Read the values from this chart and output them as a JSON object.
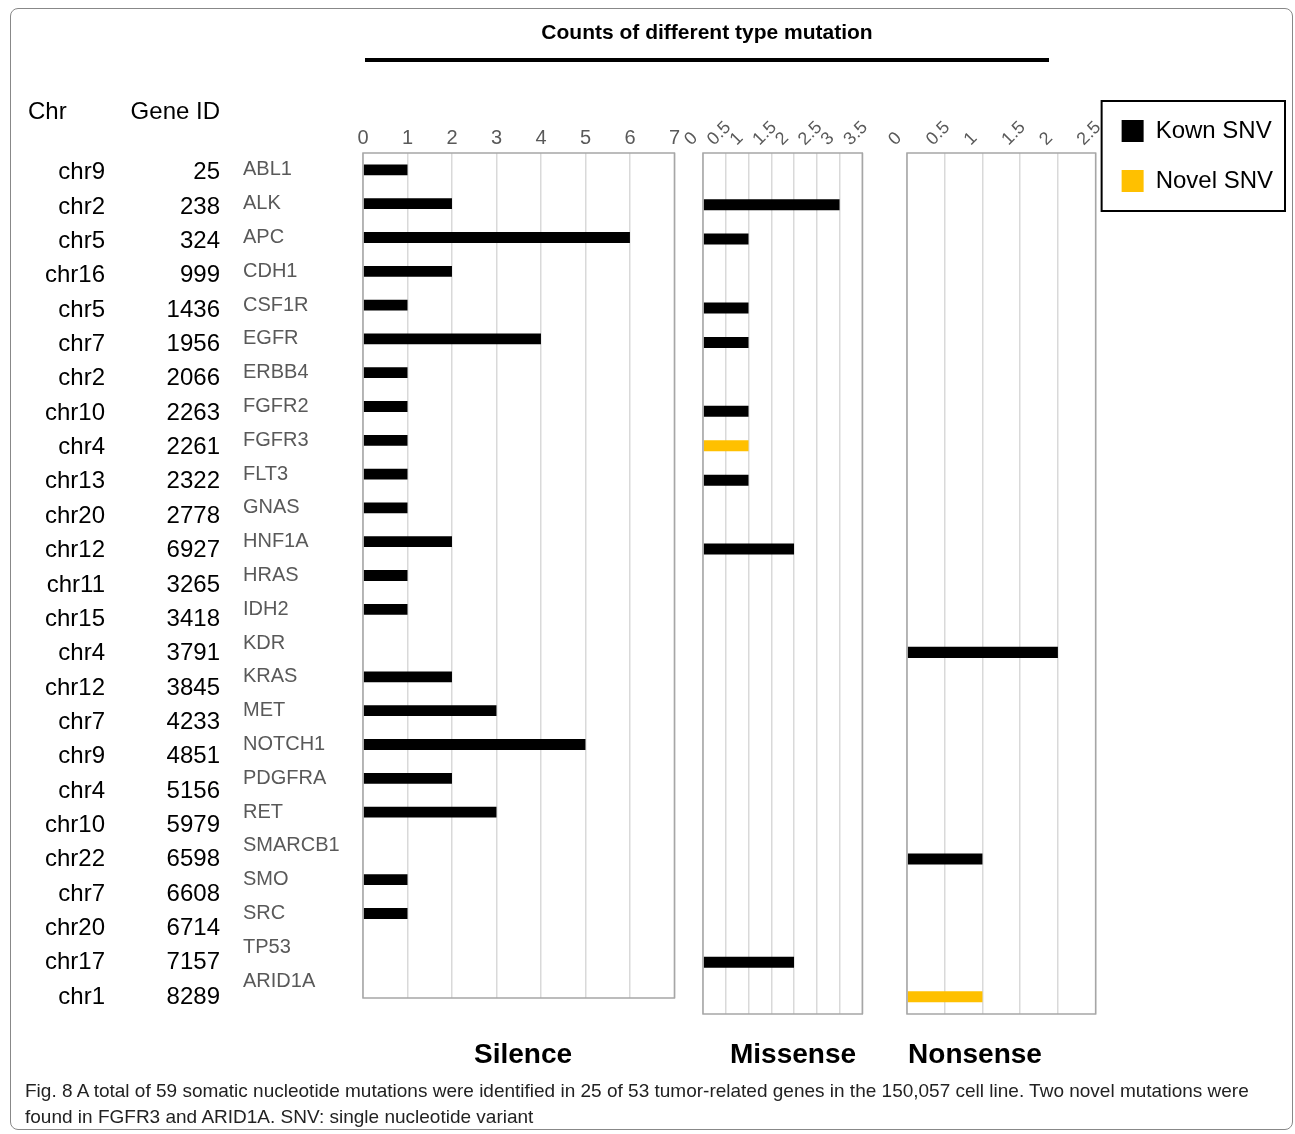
{
  "chart_data": [
    {
      "type": "other",
      "title": "Counts of different type mutation",
      "annotations": [
        "Chr",
        "Gene ID",
        "chr9",
        "25",
        "chr2",
        "238",
        "chr5",
        "324",
        "chr16",
        "999",
        "chr5",
        "1436",
        "chr7",
        "1956",
        "chr2",
        "2066",
        "chr10",
        "2263",
        "chr4",
        "2261",
        "chr13",
        "2322",
        "chr20",
        "2778",
        "chr12",
        "6927",
        "chr11",
        "3265",
        "chr15",
        "3418",
        "chr4",
        "3791",
        "chr12",
        "3845",
        "chr7",
        "4233",
        "chr9",
        "4851",
        "chr4",
        "5156",
        "chr10",
        "5979",
        "chr22",
        "6598",
        "chr7",
        "6608",
        "chr20",
        "6714",
        "chr17",
        "7157",
        "chr1",
        "8289",
        "Fig. 8 A total of 59 somatic nucleotide mutations were identified in 25 of 53 tumor-related genes in the 150,057 cell line. Two novel mutations were found in FGFR3 and ARID1A. SNV: single nucleotide variant"
      ]
    },
    {
      "type": "bar",
      "orientation": "horizontal",
      "stacked": true,
      "xlabel": "Silence",
      "grid": "x",
      "categories": [
        "ABL1",
        "ALK",
        "APC",
        "CDH1",
        "CSF1R",
        "EGFR",
        "ERBB4",
        "FGFR2",
        "FGFR3",
        "FLT3",
        "GNAS",
        "HNF1A",
        "HRAS",
        "IDH2",
        "KDR",
        "KRAS",
        "MET",
        "NOTCH1",
        "PDGFRA",
        "RET",
        "SMARCB1",
        "SMO",
        "SRC",
        "TP53",
        "ARID1A"
      ],
      "xlim": [
        0,
        7
      ],
      "xticks": [
        0,
        1,
        2,
        3,
        4,
        5,
        6,
        7
      ],
      "series": [
        {
          "color": "#000000",
          "values": [
            1,
            2,
            6,
            2,
            1,
            4,
            1,
            1,
            1,
            1,
            1,
            2,
            1,
            1,
            null,
            2,
            3,
            5,
            2,
            3,
            null,
            1,
            1,
            null,
            null
          ]
        }
      ]
    },
    {
      "type": "bar",
      "orientation": "horizontal",
      "stacked": true,
      "xlabel": "Missense",
      "grid": "x",
      "tick_labels": "x",
      "xlim": [
        0,
        3.5
      ],
      "xticks": [
        0,
        0.5,
        1,
        1.5,
        2,
        2.5,
        3,
        3.5
      ],
      "series": [
        {
          "color": "#000000",
          "values": [
            null,
            3,
            1,
            null,
            1,
            1,
            null,
            1,
            null,
            1,
            null,
            2,
            null,
            null,
            null,
            null,
            null,
            null,
            null,
            null,
            null,
            null,
            null,
            2,
            null
          ]
        },
        {
          "color": "#ffc000",
          "values": [
            null,
            null,
            null,
            null,
            null,
            null,
            null,
            null,
            1,
            null,
            null,
            null,
            null,
            null,
            null,
            null,
            null,
            null,
            null,
            null,
            null,
            null,
            null,
            null,
            null
          ]
        }
      ]
    },
    {
      "type": "bar",
      "orientation": "horizontal",
      "stacked": true,
      "xlabel": "Nonsense",
      "grid": "x",
      "tick_labels": "x",
      "legend": "right",
      "xlim": [
        0,
        2.5
      ],
      "xticks": [
        0,
        0.5,
        1,
        1.5,
        2,
        2.5
      ],
      "series": [
        {
          "name": "Kown SNV",
          "color": "#000000",
          "values": [
            null,
            null,
            null,
            null,
            null,
            null,
            null,
            null,
            null,
            null,
            null,
            null,
            null,
            null,
            2,
            null,
            null,
            null,
            null,
            null,
            1,
            null,
            null,
            null,
            null
          ]
        },
        {
          "name": "Novel SNV",
          "color": "#ffc000",
          "values": [
            null,
            null,
            null,
            null,
            null,
            null,
            null,
            null,
            null,
            null,
            null,
            null,
            null,
            null,
            null,
            null,
            null,
            null,
            null,
            null,
            null,
            null,
            null,
            null,
            1
          ]
        }
      ]
    }
  ]
}
